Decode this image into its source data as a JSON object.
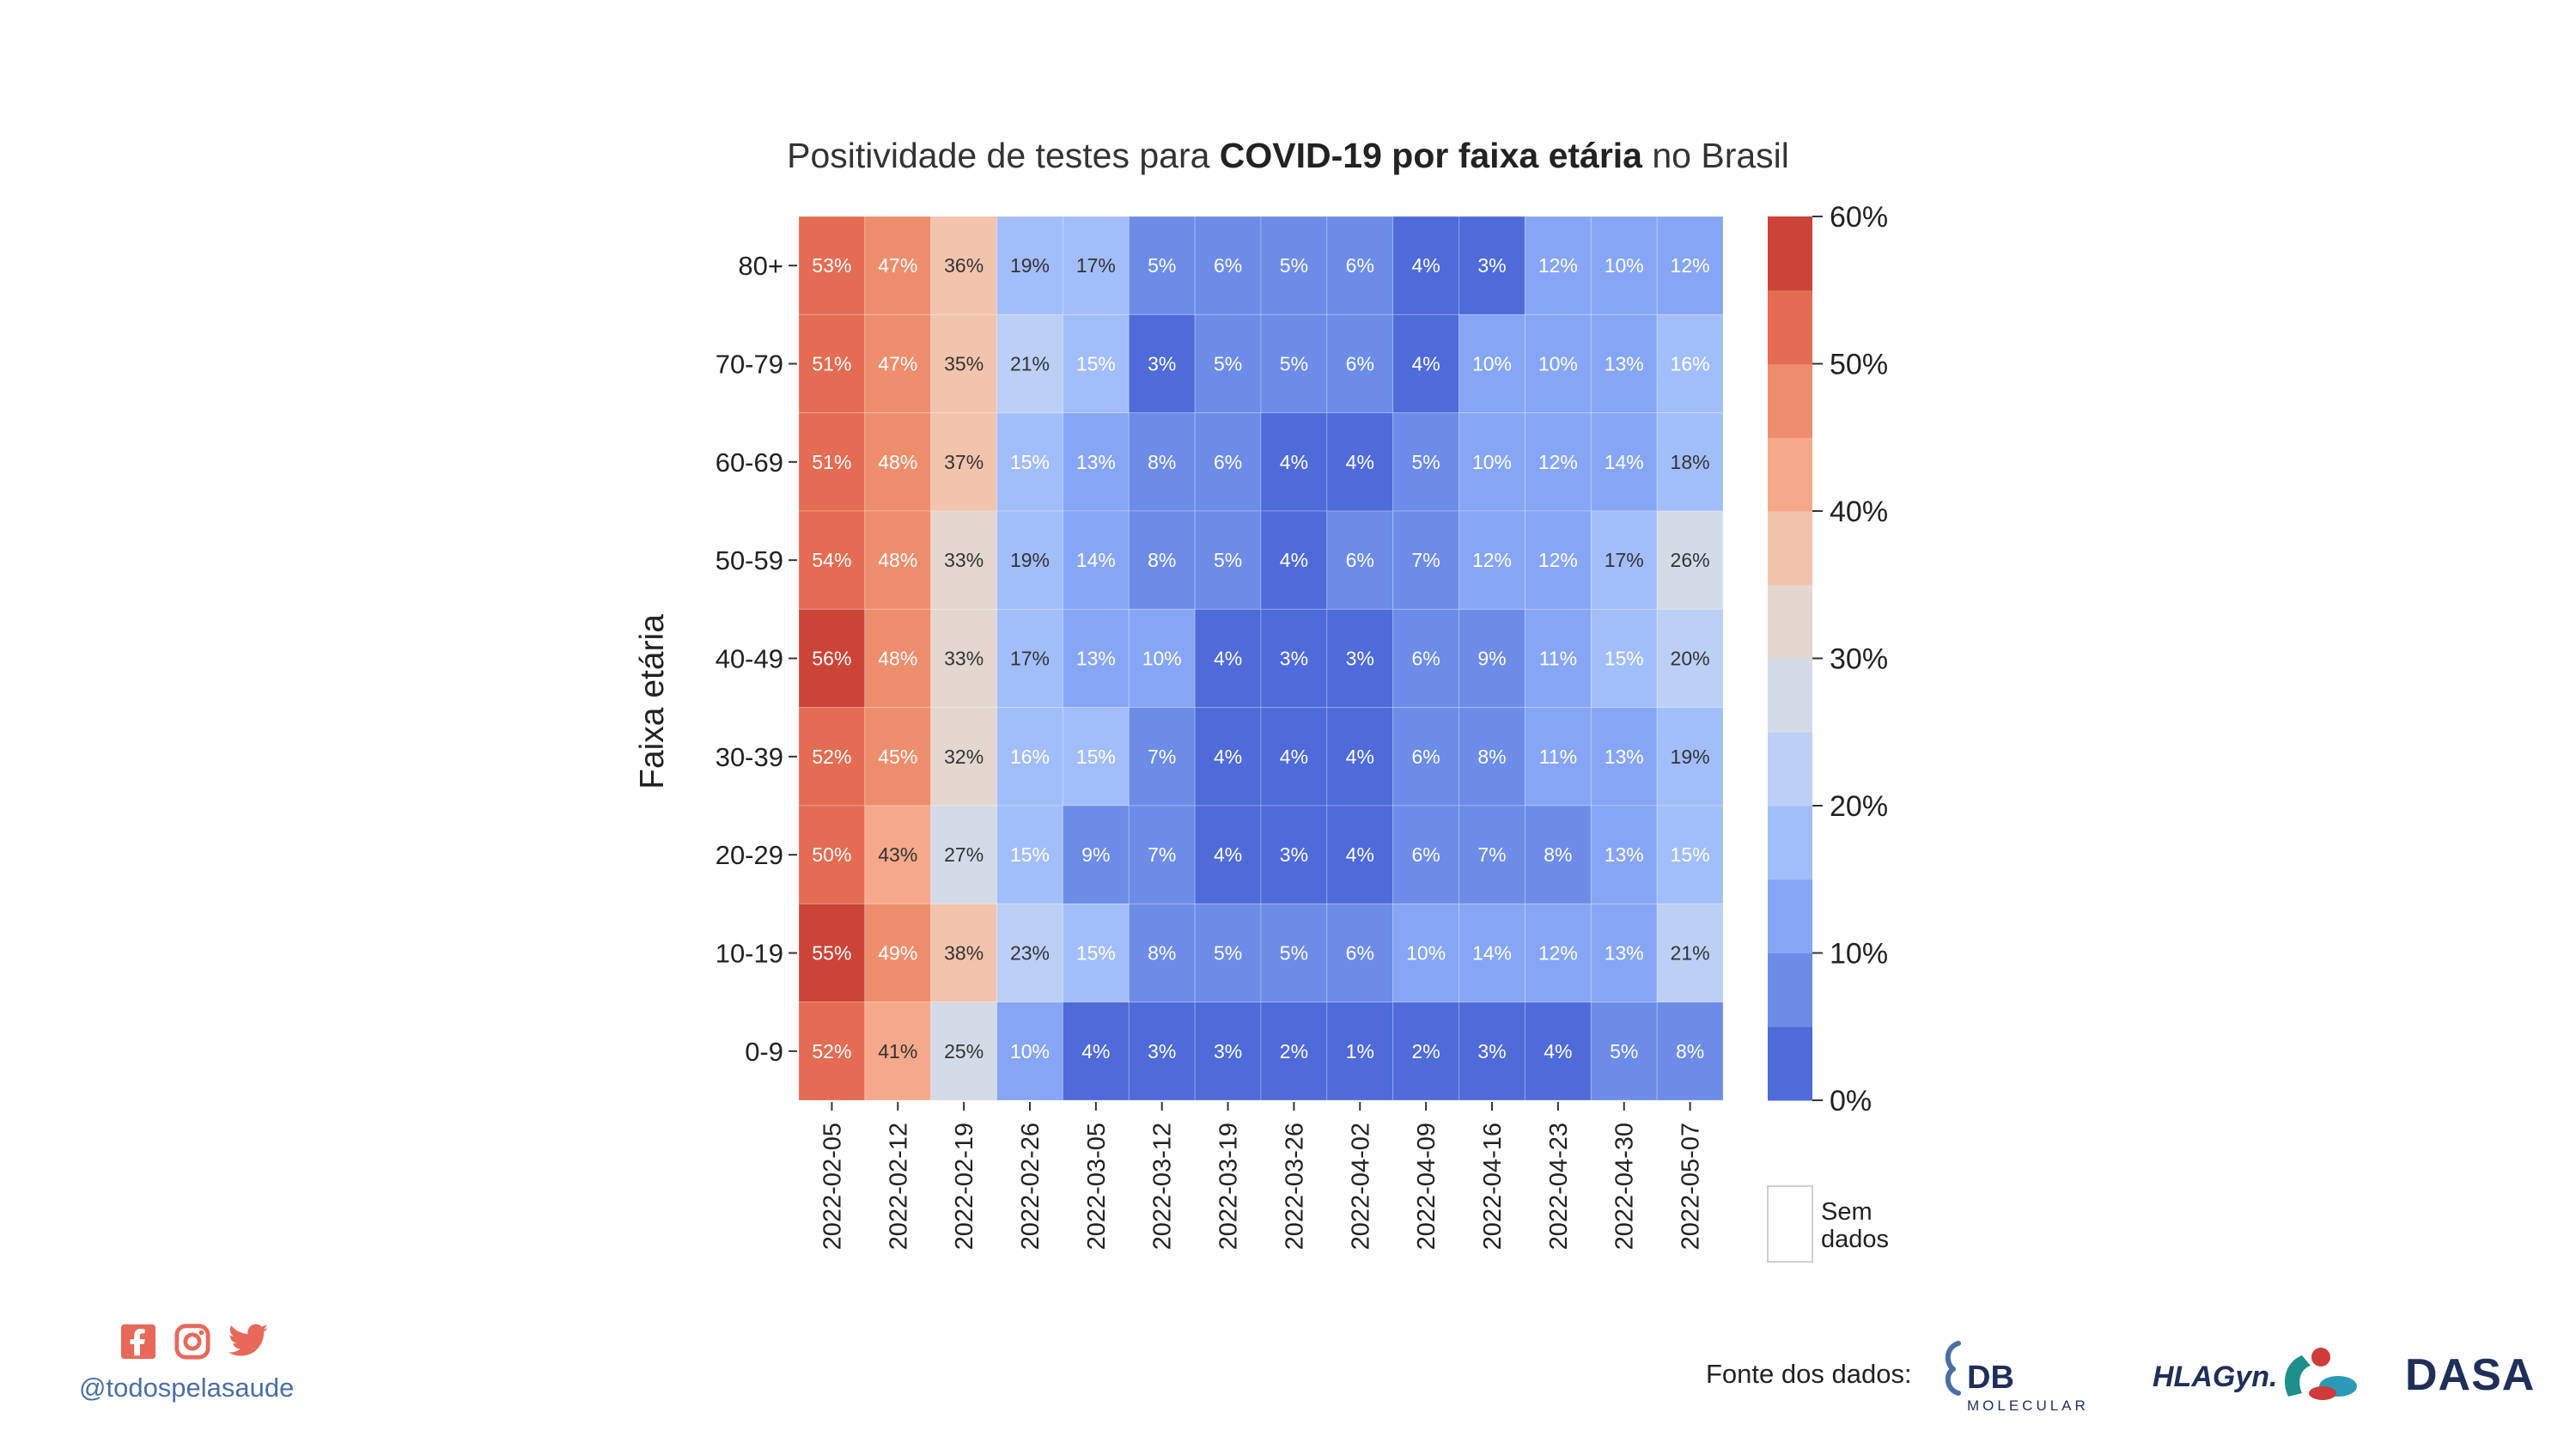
{
  "title": {
    "part1": "Positividade de testes para ",
    "part2": "COVID-19 por faixa etária",
    "part3": " no Brasil"
  },
  "chart_data": {
    "type": "heatmap",
    "ylabel": "Faixa etária",
    "xlabel": "",
    "x": [
      "2022-02-05",
      "2022-02-12",
      "2022-02-19",
      "2022-02-26",
      "2022-03-05",
      "2022-03-12",
      "2022-03-19",
      "2022-03-26",
      "2022-04-02",
      "2022-04-09",
      "2022-04-16",
      "2022-04-23",
      "2022-04-30",
      "2022-05-07"
    ],
    "y": [
      "80+",
      "70-79",
      "60-69",
      "50-59",
      "40-49",
      "30-39",
      "20-29",
      "10-19",
      "0-9"
    ],
    "values": [
      [
        53,
        47,
        36,
        19,
        17,
        5,
        6,
        5,
        6,
        4,
        3,
        12,
        10,
        12
      ],
      [
        51,
        47,
        35,
        21,
        15,
        3,
        5,
        5,
        6,
        4,
        10,
        10,
        13,
        16
      ],
      [
        51,
        48,
        37,
        15,
        13,
        8,
        6,
        4,
        4,
        5,
        10,
        12,
        14,
        18
      ],
      [
        54,
        48,
        33,
        19,
        14,
        8,
        5,
        4,
        6,
        7,
        12,
        12,
        17,
        26
      ],
      [
        56,
        48,
        33,
        17,
        13,
        10,
        4,
        3,
        3,
        6,
        9,
        11,
        15,
        20
      ],
      [
        52,
        45,
        32,
        16,
        15,
        7,
        4,
        4,
        4,
        6,
        8,
        11,
        13,
        19
      ],
      [
        50,
        43,
        27,
        15,
        9,
        7,
        4,
        3,
        4,
        6,
        7,
        8,
        13,
        15
      ],
      [
        55,
        49,
        38,
        23,
        15,
        8,
        5,
        5,
        6,
        10,
        14,
        12,
        13,
        21
      ],
      [
        52,
        41,
        25,
        10,
        4,
        3,
        3,
        2,
        1,
        2,
        3,
        4,
        5,
        8
      ]
    ],
    "value_suffix": "%",
    "colorbar": {
      "range": [
        0,
        60
      ],
      "ticks": [
        "0%",
        "10%",
        "20%",
        "30%",
        "40%",
        "50%",
        "60%"
      ],
      "bins": 12,
      "colors": [
        "#4f6bd9",
        "#6c8ce8",
        "#86a6f5",
        "#a2befa",
        "#bccff5",
        "#d3dbe8",
        "#e4d7d0",
        "#f2c4ad",
        "#f5a98a",
        "#ee8d6c",
        "#e36c52",
        "#cc4438"
      ],
      "missing_label": "Sem dados"
    }
  },
  "footer": {
    "handle": "@todospelasaude",
    "source_label": "Fonte dos dados:",
    "social_icons": [
      "facebook-icon",
      "instagram-icon",
      "twitter-icon"
    ],
    "brand_color": "#e8685a",
    "logos": [
      "DB MOLECULAR",
      "HLAGyn.",
      "DASA"
    ]
  }
}
